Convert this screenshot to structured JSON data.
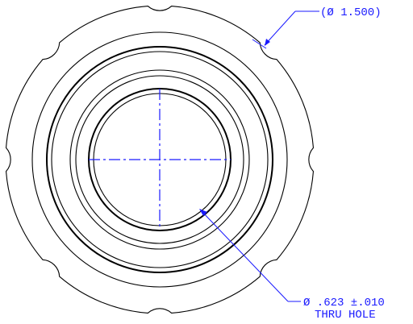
{
  "colors": {
    "part_outline": "#000000",
    "dimension": "#1a1aff",
    "background": "#ffffff"
  },
  "dimensions": {
    "outer_diameter": {
      "text": "(Ø 1.500)"
    },
    "thru_hole": {
      "line1": "Ø .623 ±.010",
      "line2": "THRU HOLE"
    }
  }
}
